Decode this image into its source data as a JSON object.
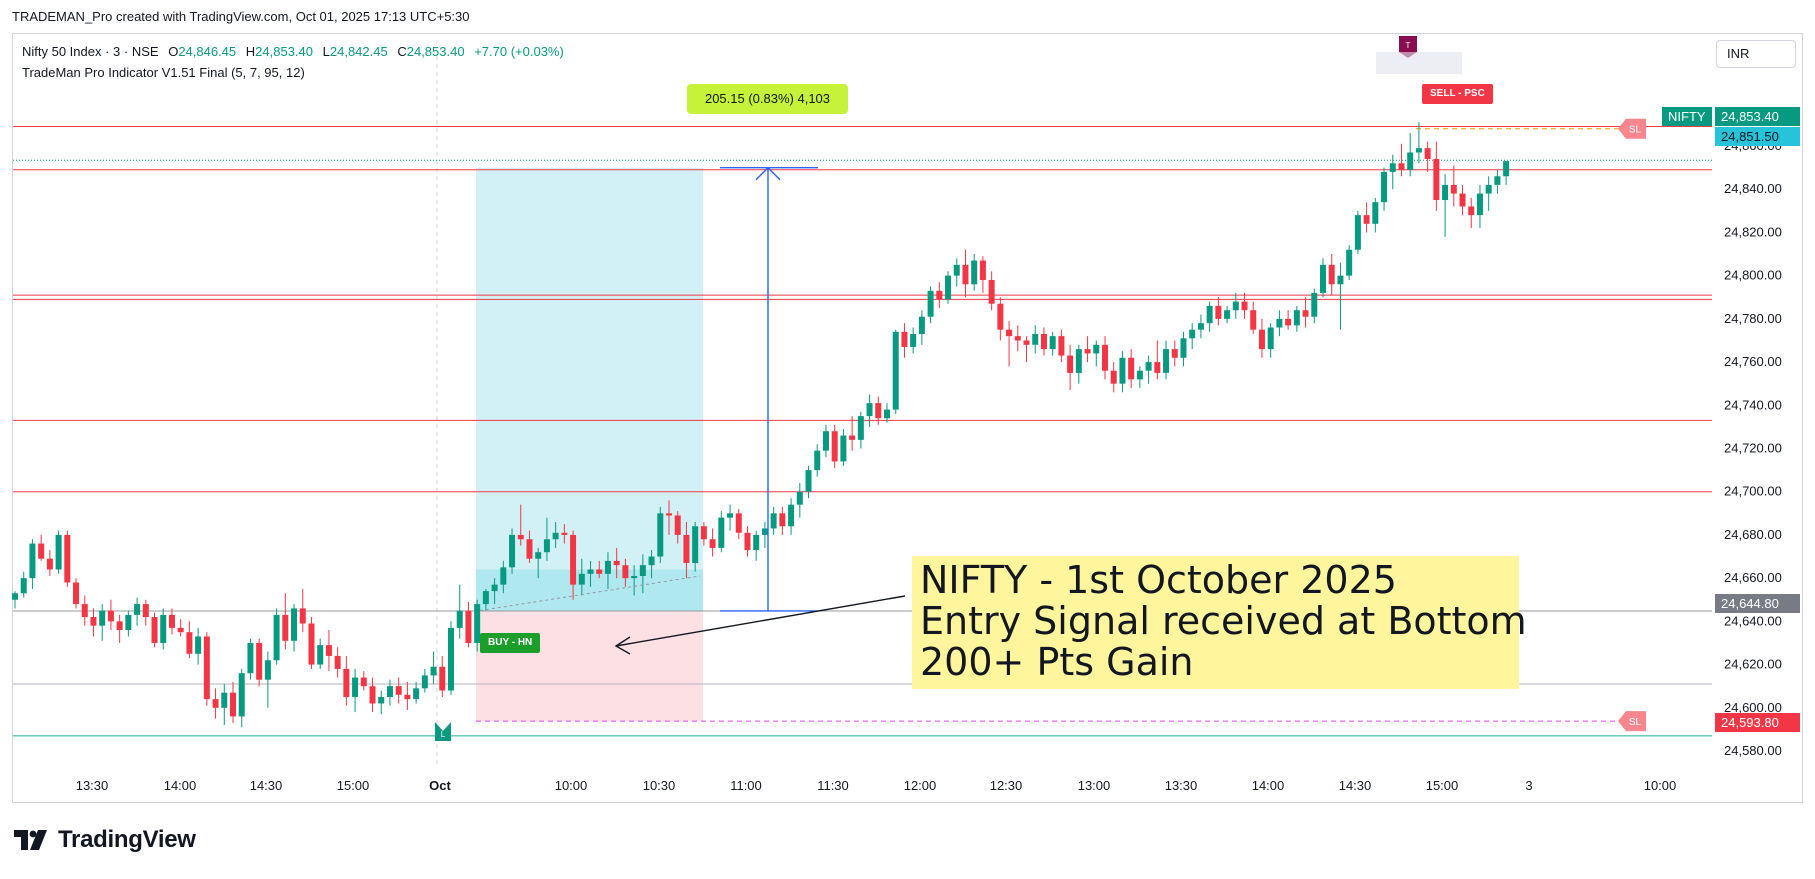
{
  "caption": "TRADEMAN_Pro created with TradingView.com, Oct 01, 2025 17:13 UTC+5:30",
  "legend": {
    "symbol": "Nifty 50 Index · 3 · NSE",
    "open_label": "O",
    "open": "24,846.45",
    "high_label": "H",
    "high": "24,853.40",
    "low_label": "L",
    "low": "24,842.45",
    "close_label": "C",
    "close": "24,853.40",
    "change": "+7.70 (+0.03%)",
    "indicator": "TradeMan Pro Indicator V1.51 Final (5, 7, 95, 12)"
  },
  "currency": "INR",
  "brand": "TradingView",
  "measure_label": "205.15 (0.83%) 4,103",
  "annotation": {
    "line1": "NIFTY - 1st October 2025",
    "line2": "Entry Signal received at Bottom",
    "line3": "200+ Pts Gain"
  },
  "signals": {
    "buy": "BUY - HN",
    "sell": "SELL - PSC",
    "sl": "SL",
    "long_marker": "L",
    "target_marker": "T"
  },
  "price_tags": {
    "symbol": "NIFTY",
    "last": "24,853.40",
    "prev": "24,851.50",
    "entry": "24,644.80",
    "stop": "24,593.80"
  },
  "colors": {
    "up": "#089981",
    "down": "#f23645",
    "support": "#f23645",
    "accent": "#2962ff",
    "target_zone": "#cdf0f5",
    "stop_zone": "#fde0e3"
  },
  "chart_data": {
    "type": "candlestick",
    "ylim": [
      24573,
      24871
    ],
    "y_ticks": [
      "24,860.00",
      "24,840.00",
      "24,820.00",
      "24,800.00",
      "24,780.00",
      "24,760.00",
      "24,740.00",
      "24,720.00",
      "24,700.00",
      "24,680.00",
      "24,660.00",
      "24,640.00",
      "24,620.00",
      "24,600.00",
      "24,580.00"
    ],
    "x_ticks": [
      "13:30",
      "14:00",
      "14:30",
      "15:00",
      "Oct",
      "10:00",
      "10:30",
      "11:00",
      "11:30",
      "12:00",
      "12:30",
      "13:00",
      "13:30",
      "14:00",
      "14:30",
      "15:00",
      "3",
      "10:00"
    ],
    "horizontal_levels": [
      24869,
      24849,
      24791,
      24789,
      24733,
      24700
    ],
    "entry_level": 24644.8,
    "stop_level": 24593.8,
    "grey_level": 24611,
    "green_level": 24587,
    "target_price": 24849.95,
    "candles": [
      [
        24650,
        24654,
        24646,
        24653
      ],
      [
        24653,
        24663,
        24651,
        24660
      ],
      [
        24660,
        24678,
        24655,
        24676
      ],
      [
        24676,
        24680,
        24668,
        24669
      ],
      [
        24669,
        24673,
        24661,
        24664
      ],
      [
        24664,
        24682,
        24662,
        24680
      ],
      [
        24680,
        24682,
        24656,
        24658
      ],
      [
        24658,
        24660,
        24646,
        24648
      ],
      [
        24648,
        24652,
        24638,
        24642
      ],
      [
        24642,
        24646,
        24633,
        24638
      ],
      [
        24638,
        24648,
        24631,
        24645
      ],
      [
        24645,
        24650,
        24636,
        24640
      ],
      [
        24640,
        24643,
        24630,
        24636
      ],
      [
        24636,
        24645,
        24633,
        24643
      ],
      [
        24643,
        24651,
        24638,
        24648
      ],
      [
        24648,
        24650,
        24638,
        24642
      ],
      [
        24642,
        24644,
        24628,
        24630
      ],
      [
        24630,
        24646,
        24627,
        24643
      ],
      [
        24643,
        24646,
        24634,
        24637
      ],
      [
        24637,
        24641,
        24633,
        24635
      ],
      [
        24635,
        24640,
        24623,
        24625
      ],
      [
        24625,
        24637,
        24620,
        24633
      ],
      [
        24633,
        24635,
        24601,
        24604
      ],
      [
        24604,
        24609,
        24595,
        24600
      ],
      [
        24600,
        24611,
        24592,
        24607
      ],
      [
        24607,
        24612,
        24593,
        24596
      ],
      [
        24596,
        24618,
        24591,
        24616
      ],
      [
        24616,
        24632,
        24613,
        24630
      ],
      [
        24630,
        24632,
        24610,
        24613
      ],
      [
        24613,
        24626,
        24600,
        24622
      ],
      [
        24622,
        24646,
        24620,
        24643
      ],
      [
        24643,
        24653,
        24627,
        24631
      ],
      [
        24631,
        24648,
        24626,
        24646
      ],
      [
        24646,
        24655,
        24635,
        24639
      ],
      [
        24639,
        24642,
        24618,
        24620
      ],
      [
        24620,
        24632,
        24618,
        24629
      ],
      [
        24629,
        24636,
        24617,
        24624
      ],
      [
        24624,
        24628,
        24614,
        24618
      ],
      [
        24618,
        24624,
        24601,
        24605
      ],
      [
        24605,
        24618,
        24598,
        24614
      ],
      [
        24614,
        24617,
        24608,
        24610
      ],
      [
        24610,
        24614,
        24598,
        24602
      ],
      [
        24602,
        24608,
        24597,
        24605
      ],
      [
        24605,
        24613,
        24601,
        24610
      ],
      [
        24610,
        24614,
        24602,
        24606
      ],
      [
        24606,
        24612,
        24599,
        24604
      ],
      [
        24604,
        24612,
        24602,
        24609
      ],
      [
        24609,
        24618,
        24607,
        24615
      ],
      [
        24615,
        24626,
        24611,
        24619
      ],
      [
        24619,
        24624,
        24605,
        24608
      ],
      [
        24608,
        24640,
        24606,
        24637
      ],
      [
        24637,
        24657,
        24632,
        24645
      ],
      [
        24645,
        24649,
        24628,
        24630
      ],
      [
        24630,
        24650,
        24626,
        24648
      ],
      [
        24648,
        24655,
        24645,
        24654
      ],
      [
        24654,
        24660,
        24648,
        24657
      ],
      [
        24657,
        24668,
        24653,
        24665
      ],
      [
        24665,
        24683,
        24662,
        24680
      ],
      [
        24680,
        24694,
        24675,
        24678
      ],
      [
        24678,
        24682,
        24667,
        24669
      ],
      [
        24669,
        24674,
        24660,
        24672
      ],
      [
        24672,
        24688,
        24668,
        24678
      ],
      [
        24678,
        24686,
        24674,
        24681
      ],
      [
        24681,
        24685,
        24676,
        24680
      ],
      [
        24680,
        24682,
        24650,
        24657
      ],
      [
        24657,
        24669,
        24652,
        24662
      ],
      [
        24662,
        24668,
        24656,
        24664
      ],
      [
        24664,
        24668,
        24660,
        24662
      ],
      [
        24662,
        24672,
        24655,
        24668
      ],
      [
        24668,
        24674,
        24660,
        24666
      ],
      [
        24666,
        24669,
        24656,
        24660
      ],
      [
        24660,
        24666,
        24652,
        24661
      ],
      [
        24661,
        24671,
        24653,
        24666
      ],
      [
        24666,
        24673,
        24660,
        24670
      ],
      [
        24670,
        24693,
        24667,
        24690
      ],
      [
        24690,
        24696,
        24680,
        24689
      ],
      [
        24689,
        24691,
        24676,
        24680
      ],
      [
        24680,
        24686,
        24660,
        24667
      ],
      [
        24667,
        24686,
        24663,
        24684
      ],
      [
        24684,
        24686,
        24675,
        24678
      ],
      [
        24678,
        24683,
        24670,
        24674
      ],
      [
        24674,
        24691,
        24672,
        24688
      ],
      [
        24688,
        24694,
        24682,
        24690
      ],
      [
        24690,
        24692,
        24678,
        24681
      ],
      [
        24681,
        24684,
        24670,
        24673
      ],
      [
        24673,
        24682,
        24668,
        24680
      ],
      [
        24680,
        24686,
        24674,
        24683
      ],
      [
        24683,
        24693,
        24680,
        24690
      ],
      [
        24690,
        24693,
        24680,
        24684
      ],
      [
        24684,
        24697,
        24680,
        24694
      ],
      [
        24694,
        24704,
        24688,
        24700
      ],
      [
        24700,
        24712,
        24697,
        24710
      ],
      [
        24710,
        24722,
        24707,
        24719
      ],
      [
        24719,
        24731,
        24716,
        24728
      ],
      [
        24728,
        24731,
        24711,
        24714
      ],
      [
        24714,
        24729,
        24712,
        24726
      ],
      [
        24726,
        24735,
        24719,
        24724
      ],
      [
        24724,
        24737,
        24720,
        24735
      ],
      [
        24735,
        24745,
        24730,
        24741
      ],
      [
        24741,
        24744,
        24731,
        24734
      ],
      [
        24734,
        24741,
        24732,
        24738
      ],
      [
        24738,
        24775,
        24736,
        24774
      ],
      [
        24774,
        24778,
        24762,
        24767
      ],
      [
        24767,
        24776,
        24764,
        24773
      ],
      [
        24773,
        24784,
        24768,
        24781
      ],
      [
        24781,
        24795,
        24778,
        24793
      ],
      [
        24793,
        24797,
        24785,
        24789
      ],
      [
        24789,
        24802,
        24787,
        24800
      ],
      [
        24800,
        24808,
        24795,
        24805
      ],
      [
        24805,
        24812,
        24790,
        24796
      ],
      [
        24796,
        24810,
        24793,
        24807
      ],
      [
        24807,
        24809,
        24792,
        24798
      ],
      [
        24798,
        24802,
        24784,
        24787
      ],
      [
        24787,
        24790,
        24770,
        24775
      ],
      [
        24775,
        24779,
        24758,
        24772
      ],
      [
        24772,
        24777,
        24765,
        24770
      ],
      [
        24770,
        24772,
        24760,
        24768
      ],
      [
        24768,
        24777,
        24764,
        24773
      ],
      [
        24773,
        24776,
        24763,
        24766
      ],
      [
        24766,
        24774,
        24763,
        24772
      ],
      [
        24772,
        24775,
        24760,
        24763
      ],
      [
        24763,
        24768,
        24747,
        24755
      ],
      [
        24755,
        24768,
        24750,
        24766
      ],
      [
        24766,
        24772,
        24760,
        24764
      ],
      [
        24764,
        24770,
        24758,
        24768
      ],
      [
        24768,
        24772,
        24752,
        24756
      ],
      [
        24756,
        24760,
        24746,
        24750
      ],
      [
        24750,
        24765,
        24746,
        24762
      ],
      [
        24762,
        24766,
        24748,
        24752
      ],
      [
        24752,
        24758,
        24748,
        24756
      ],
      [
        24756,
        24763,
        24750,
        24760
      ],
      [
        24760,
        24770,
        24752,
        24755
      ],
      [
        24755,
        24770,
        24752,
        24766
      ],
      [
        24766,
        24770,
        24758,
        24762
      ],
      [
        24762,
        24774,
        24758,
        24771
      ],
      [
        24771,
        24778,
        24766,
        24775
      ],
      [
        24775,
        24782,
        24771,
        24778
      ],
      [
        24778,
        24788,
        24774,
        24786
      ],
      [
        24786,
        24790,
        24777,
        24780
      ],
      [
        24780,
        24786,
        24778,
        24784
      ],
      [
        24784,
        24792,
        24780,
        24788
      ],
      [
        24788,
        24792,
        24780,
        24784
      ],
      [
        24784,
        24788,
        24773,
        24775
      ],
      [
        24775,
        24780,
        24762,
        24766
      ],
      [
        24766,
        24778,
        24762,
        24776
      ],
      [
        24776,
        24784,
        24772,
        24780
      ],
      [
        24780,
        24784,
        24775,
        24777
      ],
      [
        24777,
        24786,
        24774,
        24784
      ],
      [
        24784,
        24790,
        24776,
        24781
      ],
      [
        24781,
        24794,
        24778,
        24792
      ],
      [
        24792,
        24808,
        24790,
        24805
      ],
      [
        24805,
        24810,
        24791,
        24796
      ],
      [
        24796,
        24806,
        24775,
        24800
      ],
      [
        24800,
        24814,
        24798,
        24812
      ],
      [
        24812,
        24830,
        24810,
        24828
      ],
      [
        24828,
        24834,
        24820,
        24824
      ],
      [
        24824,
        24836,
        24820,
        24834
      ],
      [
        24834,
        24850,
        24830,
        24848
      ],
      [
        24848,
        24856,
        24840,
        24852
      ],
      [
        24852,
        24861,
        24846,
        24849
      ],
      [
        24849,
        24866,
        24846,
        24857
      ],
      [
        24857,
        24871,
        24852,
        24859
      ],
      [
        24859,
        24862,
        24848,
        24854
      ],
      [
        24854,
        24862,
        24830,
        24835
      ],
      [
        24835,
        24847,
        24818,
        24842
      ],
      [
        24842,
        24851,
        24832,
        24838
      ],
      [
        24838,
        24842,
        24828,
        24832
      ],
      [
        24832,
        24836,
        24822,
        24828
      ],
      [
        24828,
        24842,
        24822,
        24838
      ],
      [
        24838,
        24846,
        24830,
        24842
      ],
      [
        24842,
        24849,
        24838,
        24846
      ],
      [
        24846,
        24853,
        24842,
        24853
      ]
    ],
    "buy_candle_index": 50,
    "sell_candle_index": 158
  }
}
